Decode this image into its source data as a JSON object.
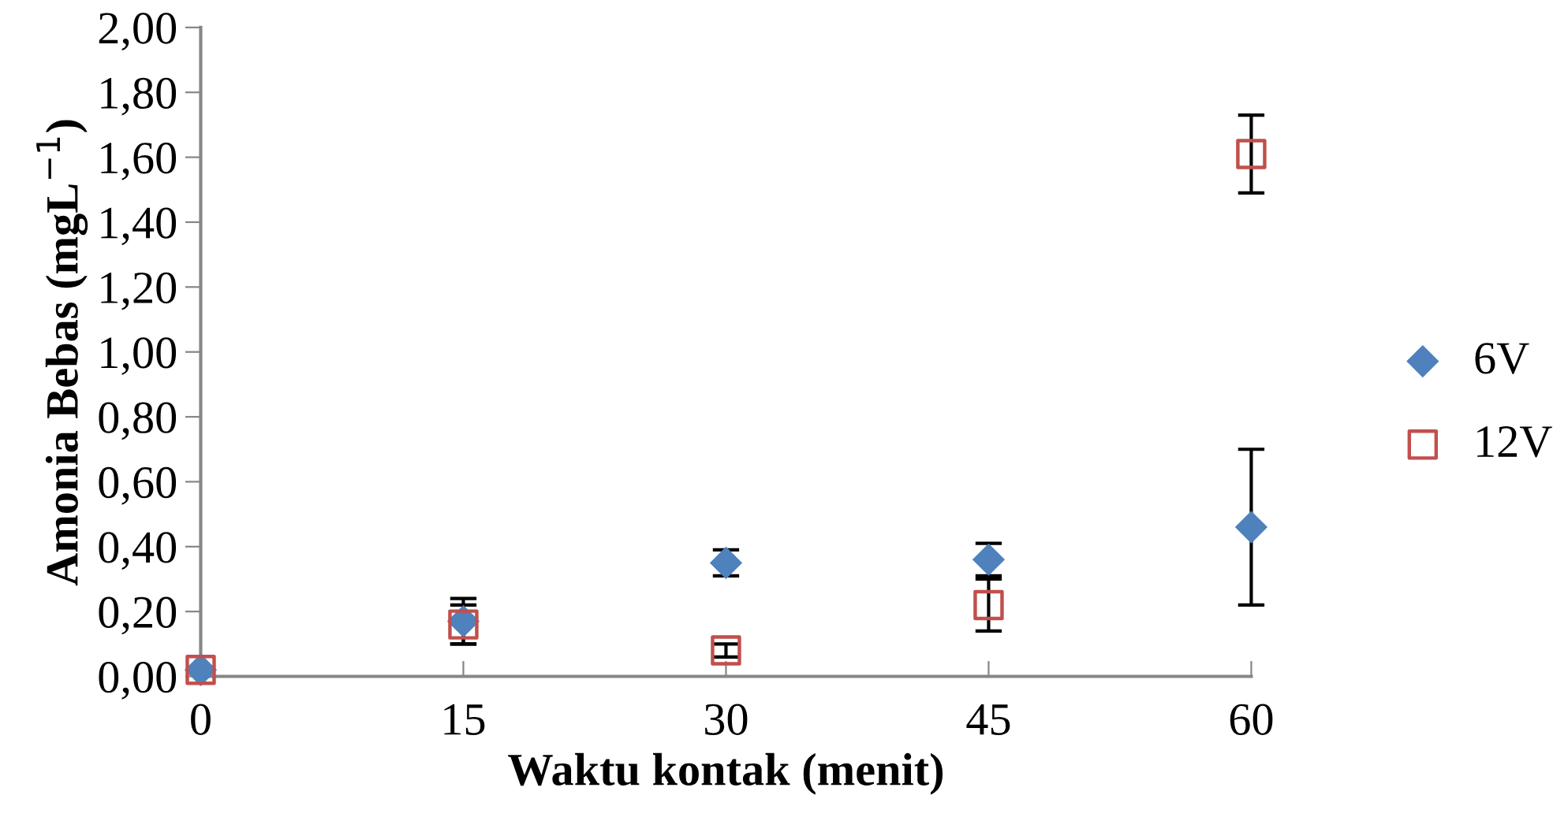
{
  "chart_data": {
    "type": "scatter",
    "xlabel": "Waktu kontak (menit)",
    "ylabel": "Amonia Bebas (mgL$^{−1}$)",
    "x": [
      0,
      15,
      30,
      45,
      60
    ],
    "series": [
      {
        "name": "6V",
        "color": "#4f81bd",
        "marker": "diamond",
        "values": [
          0.02,
          0.17,
          0.35,
          0.36,
          0.46
        ],
        "errors": [
          null,
          0.07,
          0.04,
          0.05,
          0.24
        ]
      },
      {
        "name": "12V",
        "color": "#c0504d",
        "marker": "square",
        "values": [
          0.02,
          0.16,
          0.08,
          0.22,
          1.61
        ],
        "errors": [
          null,
          0.06,
          0.02,
          0.08,
          0.12
        ]
      }
    ],
    "xlim": [
      0,
      60
    ],
    "xticks": [
      0,
      15,
      30,
      45,
      60
    ],
    "ylim": [
      0,
      2
    ],
    "yticks": [
      {
        "value": 0,
        "label": "0,00"
      },
      {
        "value": 0.2,
        "label": "0,20"
      },
      {
        "value": 0.4,
        "label": "0,40"
      },
      {
        "value": 0.6,
        "label": "0,60"
      },
      {
        "value": 0.8,
        "label": "0,80"
      },
      {
        "value": 1.0,
        "label": "1,00"
      },
      {
        "value": 1.2,
        "label": "1,20"
      },
      {
        "value": 1.4,
        "label": "1,40"
      },
      {
        "value": 1.6,
        "label": "1,60"
      },
      {
        "value": 1.8,
        "label": "1,80"
      },
      {
        "value": 2.0,
        "label": "2,00"
      }
    ],
    "grid": false,
    "legend": "right"
  }
}
